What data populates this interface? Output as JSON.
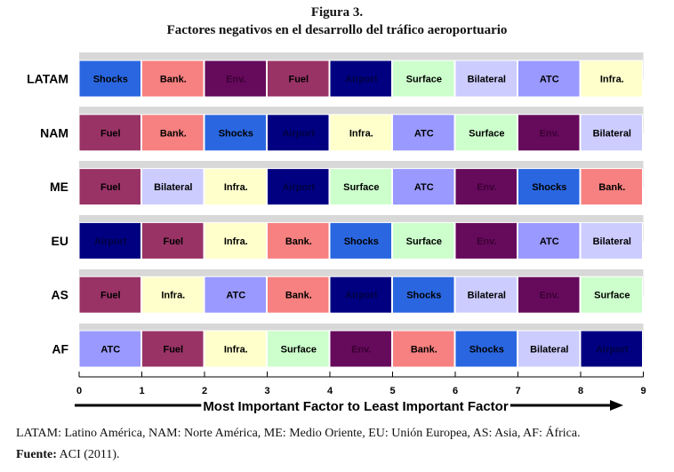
{
  "figure": {
    "label": "Figura 3.",
    "title": "Factores negativos en el desarrollo del tráfico aeroportuario"
  },
  "chart_data": {
    "type": "heatmap",
    "xlabel": "Most Important Factor to Least Important Factor",
    "x_ticks": [
      "0",
      "1",
      "2",
      "3",
      "4",
      "5",
      "6",
      "7",
      "8",
      "9"
    ],
    "xlim": [
      0,
      9
    ],
    "regions": [
      "LATAM",
      "NAM",
      "ME",
      "EU",
      "AS",
      "AF"
    ],
    "rankings": {
      "LATAM": [
        "Shocks",
        "Bank.",
        "Env.",
        "Fuel",
        "Airport",
        "Surface",
        "Bilateral",
        "ATC",
        "Infra."
      ],
      "NAM": [
        "Fuel",
        "Bank.",
        "Shocks",
        "Airport",
        "Infra.",
        "ATC",
        "Surface",
        "Env.",
        "Bilateral"
      ],
      "ME": [
        "Fuel",
        "Bilateral",
        "Infra.",
        "Airport",
        "Surface",
        "ATC",
        "Env.",
        "Shocks",
        "Bank."
      ],
      "EU": [
        "Airport",
        "Fuel",
        "Infra.",
        "Bank.",
        "Shocks",
        "Surface",
        "Env.",
        "ATC",
        "Bilateral"
      ],
      "AS": [
        "Fuel",
        "Infra.",
        "ATC",
        "Bank.",
        "Airport",
        "Shocks",
        "Bilateral",
        "Env.",
        "Surface"
      ],
      "AF": [
        "ATC",
        "Fuel",
        "Infra.",
        "Surface",
        "Env.",
        "Bank.",
        "Shocks",
        "Bilateral",
        "Airport"
      ]
    },
    "factor_colors": {
      "Shocks": "#2a66e0",
      "Bank.": "#f78080",
      "Env.": "#660a5c",
      "Fuel": "#993366",
      "Airport": "#000080",
      "Surface": "#ccffcc",
      "Bilateral": "#ccccff",
      "ATC": "#9999ff",
      "Infra.": "#ffffcc"
    },
    "factor_text_colors": {
      "Shocks": "#000000",
      "Bank.": "#000000",
      "Env.": "#3a0033",
      "Fuel": "#000000",
      "Airport": "#000040",
      "Surface": "#000000",
      "Bilateral": "#000000",
      "ATC": "#000000",
      "Infra.": "#000000"
    }
  },
  "footnote": {
    "abbreviations": "LATAM: Latino América, NAM: Norte América, ME: Medio Oriente, EU: Unión Europea, AS: Asia, AF: África.",
    "source_label": "Fuente:",
    "source_text": "ACI (2011)."
  }
}
